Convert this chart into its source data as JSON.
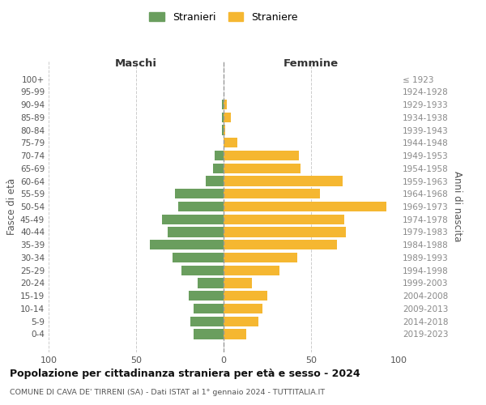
{
  "age_groups": [
    "100+",
    "95-99",
    "90-94",
    "85-89",
    "80-84",
    "75-79",
    "70-74",
    "65-69",
    "60-64",
    "55-59",
    "50-54",
    "45-49",
    "40-44",
    "35-39",
    "30-34",
    "25-29",
    "20-24",
    "15-19",
    "10-14",
    "5-9",
    "0-4"
  ],
  "birth_years": [
    "≤ 1923",
    "1924-1928",
    "1929-1933",
    "1934-1938",
    "1939-1943",
    "1944-1948",
    "1949-1953",
    "1954-1958",
    "1959-1963",
    "1964-1968",
    "1969-1973",
    "1974-1978",
    "1979-1983",
    "1984-1988",
    "1989-1993",
    "1994-1998",
    "1999-2003",
    "2004-2008",
    "2009-2013",
    "2014-2018",
    "2019-2023"
  ],
  "males": [
    0,
    0,
    1,
    1,
    1,
    0,
    5,
    6,
    10,
    28,
    26,
    35,
    32,
    42,
    29,
    24,
    15,
    20,
    17,
    19,
    17
  ],
  "females": [
    0,
    0,
    2,
    4,
    1,
    8,
    43,
    44,
    68,
    55,
    93,
    69,
    70,
    65,
    42,
    32,
    16,
    25,
    22,
    20,
    13
  ],
  "male_color": "#6a9e5e",
  "female_color": "#f5b731",
  "background_color": "#ffffff",
  "grid_color": "#cccccc",
  "title": "Popolazione per cittadinanza straniera per età e sesso - 2024",
  "subtitle": "COMUNE DI CAVA DE' TIRRENI (SA) - Dati ISTAT al 1° gennaio 2024 - TUTTITALIA.IT",
  "left_label": "Maschi",
  "right_label": "Femmine",
  "y_label_left": "Fasce di età",
  "y_label_right": "Anni di nascita",
  "legend_male": "Stranieri",
  "legend_female": "Straniere",
  "xlim": 100,
  "dashed_line_color": "#999999"
}
